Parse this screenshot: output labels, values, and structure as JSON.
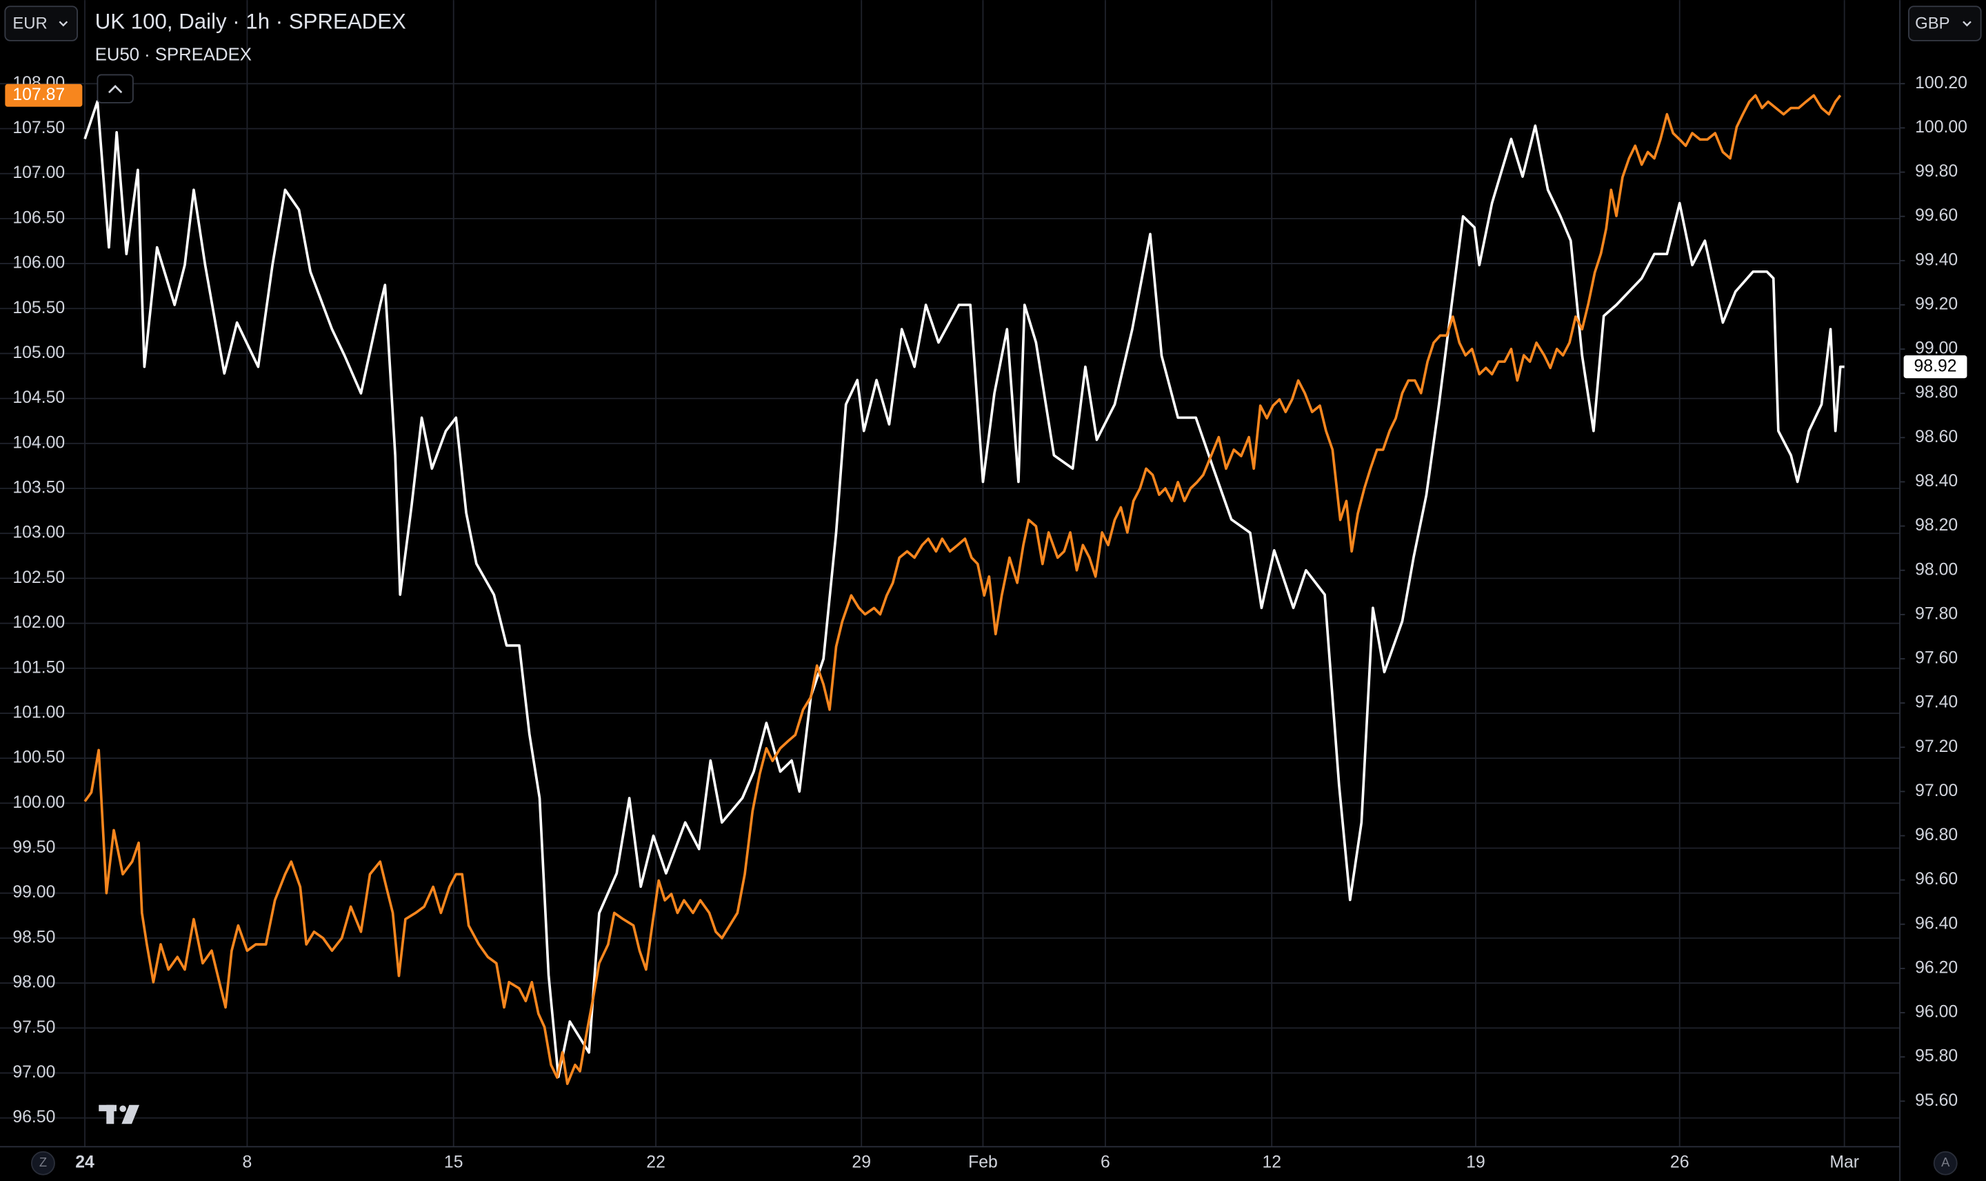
{
  "chart_data": {
    "type": "line",
    "ylabel": "EUR",
    "y2label": "GBP",
    "xlim": [
      -2.08,
      44.5
    ],
    "xticks": [
      {
        "value": 0,
        "label": "24"
      },
      {
        "value": 3.98,
        "label": "8"
      },
      {
        "value": 9.04,
        "label": "15"
      },
      {
        "value": 14.0,
        "label": "22"
      },
      {
        "value": 19.04,
        "label": "29"
      },
      {
        "value": 22.02,
        "label": "Feb"
      },
      {
        "value": 25.02,
        "label": "6"
      },
      {
        "value": 29.1,
        "label": "12"
      },
      {
        "value": 34.1,
        "label": "19"
      },
      {
        "value": 39.1,
        "label": "26"
      },
      {
        "value": 43.14,
        "label": "Mar"
      }
    ],
    "ylim": [
      96.18,
      108.93
    ],
    "yticks": [
      {
        "value": 96.5,
        "label": "96.50"
      },
      {
        "value": 97,
        "label": "97.00"
      },
      {
        "value": 97.5,
        "label": "97.50"
      },
      {
        "value": 98,
        "label": "98.00"
      },
      {
        "value": 98.5,
        "label": "98.50"
      },
      {
        "value": 99,
        "label": "99.00"
      },
      {
        "value": 99.5,
        "label": "99.50"
      },
      {
        "value": 100,
        "label": "100.00"
      },
      {
        "value": 100.5,
        "label": "100.50"
      },
      {
        "value": 101,
        "label": "101.00"
      },
      {
        "value": 101.5,
        "label": "101.50"
      },
      {
        "value": 102,
        "label": "102.00"
      },
      {
        "value": 102.5,
        "label": "102.50"
      },
      {
        "value": 103,
        "label": "103.00"
      },
      {
        "value": 103.5,
        "label": "103.50"
      },
      {
        "value": 104,
        "label": "104.00"
      },
      {
        "value": 104.5,
        "label": "104.50"
      },
      {
        "value": 105,
        "label": "105.00"
      },
      {
        "value": 105.5,
        "label": "105.50"
      },
      {
        "value": 106,
        "label": "106.00"
      },
      {
        "value": 106.5,
        "label": "106.50"
      },
      {
        "value": 107,
        "label": "107.00"
      },
      {
        "value": 107.5,
        "label": "107.50"
      },
      {
        "value": 108,
        "label": "108.00"
      }
    ],
    "y2lim": [
      95.394,
      100.578
    ],
    "y2ticks": [
      {
        "value": 95.6,
        "label": "95.60"
      },
      {
        "value": 95.8,
        "label": "95.80"
      },
      {
        "value": 96,
        "label": "96.00"
      },
      {
        "value": 96.2,
        "label": "96.20"
      },
      {
        "value": 96.4,
        "label": "96.40"
      },
      {
        "value": 96.6,
        "label": "96.60"
      },
      {
        "value": 96.8,
        "label": "96.80"
      },
      {
        "value": 97,
        "label": "97.00"
      },
      {
        "value": 97.2,
        "label": "97.20"
      },
      {
        "value": 97.4,
        "label": "97.40"
      },
      {
        "value": 97.6,
        "label": "97.60"
      },
      {
        "value": 97.8,
        "label": "97.80"
      },
      {
        "value": 98,
        "label": "98.00"
      },
      {
        "value": 98.2,
        "label": "98.20"
      },
      {
        "value": 98.4,
        "label": "98.40"
      },
      {
        "value": 98.6,
        "label": "98.60"
      },
      {
        "value": 98.8,
        "label": "98.80"
      },
      {
        "value": 99,
        "label": "99.00"
      },
      {
        "value": 99.2,
        "label": "99.20"
      },
      {
        "value": 99.4,
        "label": "99.40"
      },
      {
        "value": 99.6,
        "label": "99.60"
      },
      {
        "value": 99.8,
        "label": "99.80"
      },
      {
        "value": 100,
        "label": "100.00"
      },
      {
        "value": 100.2,
        "label": "100.20"
      }
    ],
    "grid": true,
    "series": [
      {
        "name": "UK 100, Daily · 1h · SPREADEX",
        "color": "#ffffff",
        "axis": "y2",
        "x": [
          0,
          0.31,
          0.59,
          0.78,
          1.02,
          1.3,
          1.46,
          1.77,
          2.2,
          2.45,
          2.67,
          2.95,
          3.42,
          3.73,
          4.25,
          4.6,
          4.91,
          5.25,
          5.53,
          6.06,
          6.37,
          6.77,
          7.24,
          7.36,
          7.61,
          7.73,
          8.01,
          8.26,
          8.51,
          8.85,
          9.1,
          9.35,
          9.6,
          10.03,
          10.34,
          10.65,
          10.9,
          11.15,
          11.37,
          11.61,
          11.89,
          12.36,
          12.61,
          13.04,
          13.35,
          13.63,
          13.94,
          14.25,
          14.72,
          15.06,
          15.34,
          15.62,
          16.12,
          16.4,
          16.71,
          17.05,
          17.33,
          17.52,
          17.8,
          18.11,
          18.42,
          18.66,
          18.94,
          19.1,
          19.41,
          19.72,
          20.03,
          20.34,
          20.62,
          20.93,
          21.43,
          21.71,
          22.02,
          22.3,
          22.61,
          22.89,
          23.04,
          23.32,
          23.76,
          24.22,
          24.53,
          24.81,
          25.25,
          25.68,
          26.12,
          26.4,
          26.8,
          27.24,
          27.67,
          28.11,
          28.57,
          28.85,
          29.16,
          29.63,
          29.94,
          30.4,
          30.75,
          31.02,
          31.3,
          31.58,
          31.86,
          32.3,
          32.58,
          32.89,
          33.2,
          33.51,
          33.79,
          34.07,
          34.19,
          34.5,
          34.97,
          35.25,
          35.56,
          35.87,
          36.18,
          36.43,
          36.71,
          36.99,
          37.24,
          37.55,
          37.86,
          38.17,
          38.48,
          38.79,
          39.1,
          39.41,
          39.72,
          40.16,
          40.47,
          40.9,
          41.24,
          41.4,
          41.52,
          41.83,
          41.99,
          42.27,
          42.58,
          42.8,
          42.92,
          43.04,
          43.14
        ],
        "values": [
          99.95,
          100.12,
          99.46,
          99.98,
          99.43,
          99.81,
          98.92,
          99.46,
          99.2,
          99.38,
          99.72,
          99.38,
          98.89,
          99.12,
          98.92,
          99.38,
          99.72,
          99.63,
          99.35,
          99.09,
          98.97,
          98.8,
          99.2,
          99.29,
          98.52,
          97.89,
          98.29,
          98.69,
          98.46,
          98.63,
          98.69,
          98.26,
          98.03,
          97.89,
          97.66,
          97.66,
          97.26,
          96.97,
          96.17,
          95.71,
          95.96,
          95.82,
          96.45,
          96.63,
          96.97,
          96.57,
          96.8,
          96.63,
          96.86,
          96.74,
          97.14,
          96.86,
          96.97,
          97.09,
          97.31,
          97.09,
          97.14,
          97,
          97.43,
          97.6,
          98.17,
          98.75,
          98.86,
          98.63,
          98.86,
          98.66,
          99.09,
          98.92,
          99.2,
          99.03,
          99.2,
          99.2,
          98.4,
          98.8,
          99.09,
          98.4,
          99.2,
          99.03,
          98.52,
          98.46,
          98.92,
          98.59,
          98.75,
          99.09,
          99.52,
          98.97,
          98.69,
          98.69,
          98.46,
          98.23,
          98.17,
          97.83,
          98.09,
          97.83,
          98,
          97.89,
          97.03,
          96.51,
          96.86,
          97.83,
          97.54,
          97.77,
          98.06,
          98.34,
          98.75,
          99.2,
          99.6,
          99.55,
          99.38,
          99.66,
          99.95,
          99.78,
          100.01,
          99.72,
          99.6,
          99.49,
          98.97,
          98.63,
          99.15,
          99.2,
          99.26,
          99.32,
          99.43,
          99.43,
          99.66,
          99.38,
          99.49,
          99.12,
          99.26,
          99.35,
          99.35,
          99.32,
          98.63,
          98.52,
          98.4,
          98.63,
          98.75,
          99.09,
          98.63,
          98.92,
          98.92
        ]
      },
      {
        "name": "EU50 · SPREADEX",
        "color": "#f7861e",
        "axis": "y",
        "x": [
          0,
          0.16,
          0.34,
          0.53,
          0.71,
          0.93,
          1.16,
          1.32,
          1.4,
          1.52,
          1.68,
          1.86,
          2.05,
          2.27,
          2.45,
          2.67,
          2.89,
          3.11,
          3.26,
          3.45,
          3.6,
          3.76,
          3.98,
          4.19,
          4.44,
          4.66,
          4.91,
          5.06,
          5.28,
          5.43,
          5.62,
          5.84,
          6.06,
          6.3,
          6.52,
          6.77,
          6.99,
          7.24,
          7.39,
          7.55,
          7.7,
          7.86,
          8.11,
          8.32,
          8.54,
          8.73,
          8.94,
          9.1,
          9.25,
          9.41,
          9.66,
          9.88,
          10.09,
          10.28,
          10.4,
          10.65,
          10.81,
          10.96,
          11.12,
          11.27,
          11.43,
          11.58,
          11.71,
          11.83,
          12.02,
          12.14,
          12.3,
          12.45,
          12.61,
          12.83,
          12.98,
          13.2,
          13.45,
          13.6,
          13.76,
          13.91,
          14.07,
          14.22,
          14.38,
          14.53,
          14.69,
          14.91,
          15.09,
          15.31,
          15.47,
          15.62,
          15.81,
          16,
          16.18,
          16.37,
          16.55,
          16.71,
          16.86,
          17.05,
          17.24,
          17.42,
          17.61,
          17.8,
          17.95,
          18.11,
          18.26,
          18.42,
          18.57,
          18.79,
          18.98,
          19.13,
          19.35,
          19.5,
          19.66,
          19.81,
          19.97,
          20.16,
          20.34,
          20.53,
          20.68,
          20.87,
          21.02,
          21.21,
          21.4,
          21.58,
          21.74,
          21.89,
          22.05,
          22.17,
          22.33,
          22.48,
          22.67,
          22.86,
          23.01,
          23.14,
          23.32,
          23.48,
          23.63,
          23.85,
          24.01,
          24.16,
          24.32,
          24.47,
          24.63,
          24.78,
          24.94,
          25.09,
          25.25,
          25.4,
          25.56,
          25.71,
          25.87,
          26.02,
          26.18,
          26.34,
          26.49,
          26.65,
          26.8,
          26.96,
          27.11,
          27.27,
          27.42,
          27.61,
          27.8,
          27.98,
          28.17,
          28.35,
          28.54,
          28.66,
          28.82,
          28.98,
          29.13,
          29.29,
          29.44,
          29.6,
          29.75,
          29.91,
          30.09,
          30.28,
          30.43,
          30.59,
          30.78,
          30.93,
          31.06,
          31.21,
          31.37,
          31.52,
          31.68,
          31.83,
          31.99,
          32.14,
          32.3,
          32.45,
          32.61,
          32.76,
          32.92,
          33.07,
          33.23,
          33.39,
          33.54,
          33.7,
          33.85,
          34.01,
          34.19,
          34.35,
          34.5,
          34.66,
          34.81,
          34.97,
          35.12,
          35.28,
          35.43,
          35.59,
          35.78,
          35.93,
          36.09,
          36.24,
          36.4,
          36.55,
          36.71,
          36.86,
          37.02,
          37.17,
          37.3,
          37.42,
          37.55,
          37.7,
          37.86,
          38.01,
          38.17,
          38.32,
          38.48,
          38.63,
          38.79,
          38.94,
          39.1,
          39.25,
          39.41,
          39.6,
          39.78,
          39.97,
          40.16,
          40.34,
          40.5,
          40.65,
          40.81,
          40.96,
          41.12,
          41.27,
          41.46,
          41.65,
          41.83,
          42.02,
          42.2,
          42.39,
          42.58,
          42.76,
          42.92,
          43.04
        ],
        "values": [
          100.02,
          100.12,
          100.59,
          99,
          99.7,
          99.21,
          99.35,
          99.56,
          98.78,
          98.43,
          98.01,
          98.43,
          98.15,
          98.29,
          98.15,
          98.71,
          98.22,
          98.36,
          98.08,
          97.73,
          98.36,
          98.64,
          98.36,
          98.43,
          98.43,
          98.92,
          99.21,
          99.35,
          99.07,
          98.43,
          98.57,
          98.5,
          98.36,
          98.5,
          98.85,
          98.57,
          99.21,
          99.35,
          99.07,
          98.78,
          98.08,
          98.71,
          98.78,
          98.85,
          99.07,
          98.78,
          99.07,
          99.21,
          99.21,
          98.64,
          98.43,
          98.29,
          98.22,
          97.73,
          98.01,
          97.94,
          97.8,
          98.01,
          97.66,
          97.51,
          97.09,
          96.95,
          97.23,
          96.88,
          97.09,
          97.02,
          97.44,
          97.8,
          98.22,
          98.43,
          98.78,
          98.71,
          98.64,
          98.36,
          98.15,
          98.64,
          99.14,
          98.92,
          98.99,
          98.78,
          98.92,
          98.78,
          98.92,
          98.78,
          98.57,
          98.5,
          98.64,
          98.78,
          99.21,
          99.91,
          100.33,
          100.61,
          100.47,
          100.61,
          100.69,
          100.76,
          101.04,
          101.18,
          101.53,
          101.32,
          101.04,
          101.74,
          102.02,
          102.31,
          102.17,
          102.1,
          102.17,
          102.1,
          102.31,
          102.45,
          102.73,
          102.8,
          102.73,
          102.87,
          102.94,
          102.8,
          102.94,
          102.8,
          102.87,
          102.94,
          102.73,
          102.66,
          102.31,
          102.52,
          101.88,
          102.31,
          102.73,
          102.45,
          102.87,
          103.15,
          103.08,
          102.66,
          103.01,
          102.73,
          102.8,
          103.01,
          102.59,
          102.87,
          102.73,
          102.52,
          103.01,
          102.87,
          103.15,
          103.29,
          103.01,
          103.36,
          103.5,
          103.72,
          103.65,
          103.43,
          103.5,
          103.36,
          103.57,
          103.36,
          103.5,
          103.57,
          103.65,
          103.86,
          104.07,
          103.72,
          103.93,
          103.86,
          104.07,
          103.72,
          104.42,
          104.28,
          104.42,
          104.49,
          104.35,
          104.49,
          104.7,
          104.56,
          104.35,
          104.42,
          104.14,
          103.93,
          103.15,
          103.36,
          102.8,
          103.22,
          103.5,
          103.72,
          103.93,
          103.93,
          104.14,
          104.28,
          104.56,
          104.7,
          104.7,
          104.56,
          104.91,
          105.12,
          105.2,
          105.2,
          105.41,
          105.12,
          104.98,
          105.05,
          104.77,
          104.84,
          104.77,
          104.91,
          104.91,
          105.05,
          104.7,
          104.98,
          104.91,
          105.12,
          104.98,
          104.84,
          105.05,
          104.98,
          105.12,
          105.41,
          105.27,
          105.55,
          105.9,
          106.11,
          106.39,
          106.82,
          106.53,
          106.96,
          107.17,
          107.31,
          107.1,
          107.24,
          107.17,
          107.38,
          107.66,
          107.45,
          107.38,
          107.31,
          107.45,
          107.38,
          107.38,
          107.45,
          107.24,
          107.17,
          107.52,
          107.66,
          107.8,
          107.87,
          107.73,
          107.8,
          107.73,
          107.66,
          107.73,
          107.73,
          107.8,
          107.87,
          107.73,
          107.66,
          107.8,
          107.87
        ]
      }
    ],
    "toolbar": {
      "left_button": "Z",
      "right_button": "A"
    }
  }
}
